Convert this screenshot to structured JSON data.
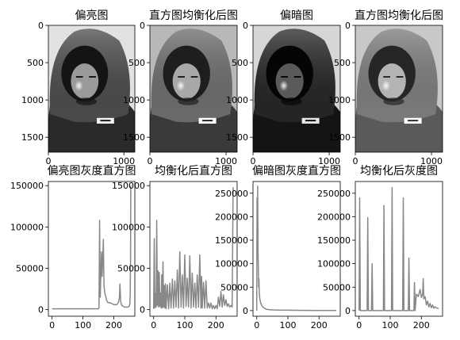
{
  "chart_data": [
    {
      "type": "image",
      "title": "偏亮图",
      "xticks": [
        "0",
        "1000"
      ],
      "yticks": [
        "0",
        "500",
        "1000",
        "1500"
      ],
      "brightness": "bright"
    },
    {
      "type": "image",
      "title": "直方图均衡化后图",
      "xticks": [
        "0",
        "1000"
      ],
      "yticks": [
        "0",
        "500",
        "1000",
        "1500"
      ],
      "brightness": "equalized"
    },
    {
      "type": "image",
      "title": "偏暗图",
      "xticks": [
        "0",
        "1000"
      ],
      "yticks": [
        "0",
        "500",
        "1000",
        "1500"
      ],
      "brightness": "dark"
    },
    {
      "type": "image",
      "title": "直方图均衡化后图",
      "xticks": [
        "0",
        "1000"
      ],
      "yticks": [
        "0",
        "500",
        "1000",
        "1500"
      ],
      "brightness": "equalized-posterized"
    },
    {
      "type": "line",
      "title": "偏亮图灰度直方图",
      "xlim": [
        -12,
        268
      ],
      "ylim": [
        -8000,
        155000
      ],
      "xticks": [
        0,
        100,
        200
      ],
      "yticks": [
        0,
        50000,
        100000,
        150000
      ],
      "color": "#888888",
      "x": [
        0,
        150,
        152,
        154,
        156,
        158,
        160,
        162,
        164,
        166,
        168,
        170,
        172,
        174,
        176,
        178,
        180,
        185,
        190,
        195,
        200,
        205,
        210,
        215,
        218,
        220,
        222,
        224,
        226,
        230,
        235,
        240,
        245,
        250,
        252,
        253,
        254,
        255
      ],
      "y": [
        1000,
        1000,
        2000,
        108000,
        15000,
        45000,
        70000,
        40000,
        60000,
        85000,
        30000,
        22000,
        18000,
        16000,
        12000,
        10000,
        9000,
        8000,
        8000,
        7000,
        6000,
        6000,
        6000,
        9000,
        14000,
        31000,
        10000,
        7000,
        5000,
        4000,
        3000,
        3000,
        3000,
        4000,
        8000,
        20000,
        60000,
        150000
      ]
    },
    {
      "type": "line",
      "title": "均衡化后直方图",
      "xlim": [
        -12,
        268
      ],
      "ylim": [
        -8000,
        155000
      ],
      "xticks": [
        0,
        100,
        200
      ],
      "yticks": [
        0,
        50000,
        100000,
        150000
      ],
      "color": "#888888",
      "x": [
        0,
        2,
        4,
        6,
        8,
        10,
        12,
        14,
        16,
        18,
        20,
        22,
        24,
        26,
        28,
        30,
        32,
        34,
        36,
        38,
        40,
        44,
        48,
        52,
        56,
        60,
        64,
        68,
        72,
        76,
        80,
        84,
        88,
        92,
        96,
        100,
        104,
        108,
        112,
        116,
        120,
        124,
        128,
        132,
        136,
        140,
        144,
        148,
        152,
        154,
        156,
        160,
        164,
        168,
        172,
        176,
        180,
        184,
        188,
        192,
        196,
        200,
        204,
        208,
        212,
        216,
        220,
        224,
        228,
        232,
        236,
        240,
        244,
        248,
        252,
        255
      ],
      "y": [
        1000,
        86000,
        2000,
        20000,
        3000,
        108000,
        5000,
        47000,
        3000,
        45000,
        4000,
        20000,
        2000,
        42000,
        2000,
        58000,
        3000,
        29000,
        2000,
        31000,
        1000,
        30000,
        1000,
        32000,
        2000,
        37000,
        2000,
        35000,
        3000,
        48000,
        2000,
        70000,
        3000,
        42000,
        2000,
        66000,
        4000,
        38000,
        3000,
        65000,
        2000,
        44000,
        3000,
        32000,
        2000,
        42000,
        3000,
        66000,
        2000,
        40000,
        2000,
        33000,
        2000,
        35000,
        2000,
        8000,
        2000,
        8000,
        1000,
        5000,
        1000,
        5000,
        1000,
        15000,
        4000,
        22000,
        3000,
        18000,
        5000,
        12000,
        4000,
        7000,
        3000,
        5000,
        3000,
        148000
      ]
    },
    {
      "type": "line",
      "title": "偏暗图灰度直方图",
      "xlim": [
        -12,
        268
      ],
      "ylim": [
        -12000,
        275000
      ],
      "xticks": [
        0,
        100,
        200
      ],
      "yticks": [
        0,
        50000,
        100000,
        150000,
        200000,
        250000
      ],
      "color": "#888888",
      "x": [
        0,
        1,
        2,
        3,
        4,
        5,
        6,
        7,
        8,
        9,
        10,
        12,
        14,
        16,
        18,
        20,
        25,
        30,
        40,
        50,
        70,
        100,
        150,
        200,
        255
      ],
      "y": [
        0,
        240000,
        110000,
        265000,
        130000,
        95000,
        50000,
        68000,
        40000,
        30000,
        25000,
        18000,
        14000,
        11000,
        9000,
        7000,
        5000,
        3000,
        2000,
        1500,
        1000,
        800,
        500,
        300,
        200
      ]
    },
    {
      "type": "line",
      "title": "均衡化后灰度图",
      "xlim": [
        -12,
        268
      ],
      "ylim": [
        -12000,
        275000
      ],
      "xticks": [
        0,
        100,
        200
      ],
      "yticks": [
        0,
        50000,
        100000,
        150000,
        200000,
        250000
      ],
      "color": "#888888",
      "x": [
        0,
        2,
        4,
        26,
        28,
        30,
        40,
        42,
        44,
        56,
        58,
        60,
        78,
        80,
        82,
        104,
        106,
        108,
        140,
        142,
        144,
        158,
        160,
        162,
        176,
        178,
        180,
        184,
        190,
        196,
        200,
        204,
        206,
        208,
        212,
        216,
        220,
        224,
        228,
        232,
        236,
        240,
        244,
        248,
        252,
        255
      ],
      "y": [
        0,
        240000,
        0,
        0,
        198000,
        0,
        0,
        100000,
        0,
        0,
        0,
        0,
        0,
        224000,
        0,
        0,
        262000,
        0,
        0,
        240000,
        0,
        0,
        112000,
        0,
        0,
        60000,
        0,
        35000,
        30000,
        45000,
        28000,
        35000,
        68000,
        25000,
        30000,
        12000,
        20000,
        8000,
        15000,
        6000,
        12000,
        5000,
        8000,
        6000,
        5000,
        4000
      ]
    }
  ]
}
